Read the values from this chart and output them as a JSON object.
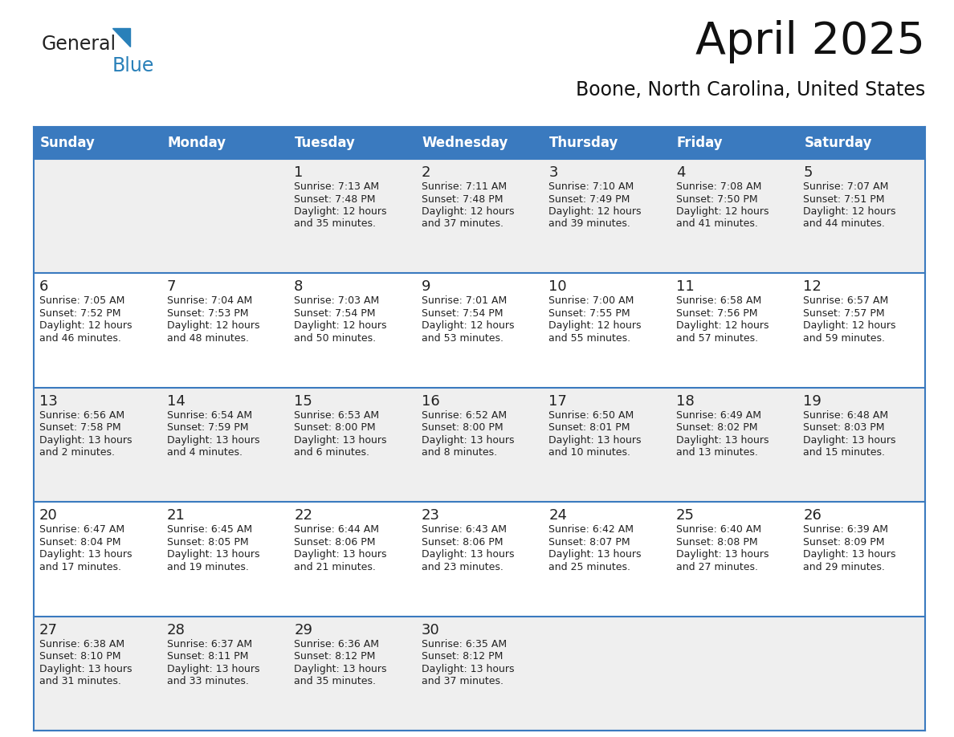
{
  "title": "April 2025",
  "subtitle": "Boone, North Carolina, United States",
  "header_bg": "#3a7abf",
  "header_text_color": "#FFFFFF",
  "cell_bg_even": "#efefef",
  "cell_bg_odd": "#FFFFFF",
  "cell_border_color": "#3a7abf",
  "day_names": [
    "Sunday",
    "Monday",
    "Tuesday",
    "Wednesday",
    "Thursday",
    "Friday",
    "Saturday"
  ],
  "text_color": "#222222",
  "logo_general_color": "#222222",
  "logo_blue_color": "#2980B9",
  "days": [
    {
      "day": 1,
      "col": 2,
      "row": 0,
      "sunrise": "7:13 AM",
      "sunset": "7:48 PM",
      "daylight": "12 hours and 35 minutes."
    },
    {
      "day": 2,
      "col": 3,
      "row": 0,
      "sunrise": "7:11 AM",
      "sunset": "7:48 PM",
      "daylight": "12 hours and 37 minutes."
    },
    {
      "day": 3,
      "col": 4,
      "row": 0,
      "sunrise": "7:10 AM",
      "sunset": "7:49 PM",
      "daylight": "12 hours and 39 minutes."
    },
    {
      "day": 4,
      "col": 5,
      "row": 0,
      "sunrise": "7:08 AM",
      "sunset": "7:50 PM",
      "daylight": "12 hours and 41 minutes."
    },
    {
      "day": 5,
      "col": 6,
      "row": 0,
      "sunrise": "7:07 AM",
      "sunset": "7:51 PM",
      "daylight": "12 hours and 44 minutes."
    },
    {
      "day": 6,
      "col": 0,
      "row": 1,
      "sunrise": "7:05 AM",
      "sunset": "7:52 PM",
      "daylight": "12 hours and 46 minutes."
    },
    {
      "day": 7,
      "col": 1,
      "row": 1,
      "sunrise": "7:04 AM",
      "sunset": "7:53 PM",
      "daylight": "12 hours and 48 minutes."
    },
    {
      "day": 8,
      "col": 2,
      "row": 1,
      "sunrise": "7:03 AM",
      "sunset": "7:54 PM",
      "daylight": "12 hours and 50 minutes."
    },
    {
      "day": 9,
      "col": 3,
      "row": 1,
      "sunrise": "7:01 AM",
      "sunset": "7:54 PM",
      "daylight": "12 hours and 53 minutes."
    },
    {
      "day": 10,
      "col": 4,
      "row": 1,
      "sunrise": "7:00 AM",
      "sunset": "7:55 PM",
      "daylight": "12 hours and 55 minutes."
    },
    {
      "day": 11,
      "col": 5,
      "row": 1,
      "sunrise": "6:58 AM",
      "sunset": "7:56 PM",
      "daylight": "12 hours and 57 minutes."
    },
    {
      "day": 12,
      "col": 6,
      "row": 1,
      "sunrise": "6:57 AM",
      "sunset": "7:57 PM",
      "daylight": "12 hours and 59 minutes."
    },
    {
      "day": 13,
      "col": 0,
      "row": 2,
      "sunrise": "6:56 AM",
      "sunset": "7:58 PM",
      "daylight": "13 hours and 2 minutes."
    },
    {
      "day": 14,
      "col": 1,
      "row": 2,
      "sunrise": "6:54 AM",
      "sunset": "7:59 PM",
      "daylight": "13 hours and 4 minutes."
    },
    {
      "day": 15,
      "col": 2,
      "row": 2,
      "sunrise": "6:53 AM",
      "sunset": "8:00 PM",
      "daylight": "13 hours and 6 minutes."
    },
    {
      "day": 16,
      "col": 3,
      "row": 2,
      "sunrise": "6:52 AM",
      "sunset": "8:00 PM",
      "daylight": "13 hours and 8 minutes."
    },
    {
      "day": 17,
      "col": 4,
      "row": 2,
      "sunrise": "6:50 AM",
      "sunset": "8:01 PM",
      "daylight": "13 hours and 10 minutes."
    },
    {
      "day": 18,
      "col": 5,
      "row": 2,
      "sunrise": "6:49 AM",
      "sunset": "8:02 PM",
      "daylight": "13 hours and 13 minutes."
    },
    {
      "day": 19,
      "col": 6,
      "row": 2,
      "sunrise": "6:48 AM",
      "sunset": "8:03 PM",
      "daylight": "13 hours and 15 minutes."
    },
    {
      "day": 20,
      "col": 0,
      "row": 3,
      "sunrise": "6:47 AM",
      "sunset": "8:04 PM",
      "daylight": "13 hours and 17 minutes."
    },
    {
      "day": 21,
      "col": 1,
      "row": 3,
      "sunrise": "6:45 AM",
      "sunset": "8:05 PM",
      "daylight": "13 hours and 19 minutes."
    },
    {
      "day": 22,
      "col": 2,
      "row": 3,
      "sunrise": "6:44 AM",
      "sunset": "8:06 PM",
      "daylight": "13 hours and 21 minutes."
    },
    {
      "day": 23,
      "col": 3,
      "row": 3,
      "sunrise": "6:43 AM",
      "sunset": "8:06 PM",
      "daylight": "13 hours and 23 minutes."
    },
    {
      "day": 24,
      "col": 4,
      "row": 3,
      "sunrise": "6:42 AM",
      "sunset": "8:07 PM",
      "daylight": "13 hours and 25 minutes."
    },
    {
      "day": 25,
      "col": 5,
      "row": 3,
      "sunrise": "6:40 AM",
      "sunset": "8:08 PM",
      "daylight": "13 hours and 27 minutes."
    },
    {
      "day": 26,
      "col": 6,
      "row": 3,
      "sunrise": "6:39 AM",
      "sunset": "8:09 PM",
      "daylight": "13 hours and 29 minutes."
    },
    {
      "day": 27,
      "col": 0,
      "row": 4,
      "sunrise": "6:38 AM",
      "sunset": "8:10 PM",
      "daylight": "13 hours and 31 minutes."
    },
    {
      "day": 28,
      "col": 1,
      "row": 4,
      "sunrise": "6:37 AM",
      "sunset": "8:11 PM",
      "daylight": "13 hours and 33 minutes."
    },
    {
      "day": 29,
      "col": 2,
      "row": 4,
      "sunrise": "6:36 AM",
      "sunset": "8:12 PM",
      "daylight": "13 hours and 35 minutes."
    },
    {
      "day": 30,
      "col": 3,
      "row": 4,
      "sunrise": "6:35 AM",
      "sunset": "8:12 PM",
      "daylight": "13 hours and 37 minutes."
    }
  ]
}
